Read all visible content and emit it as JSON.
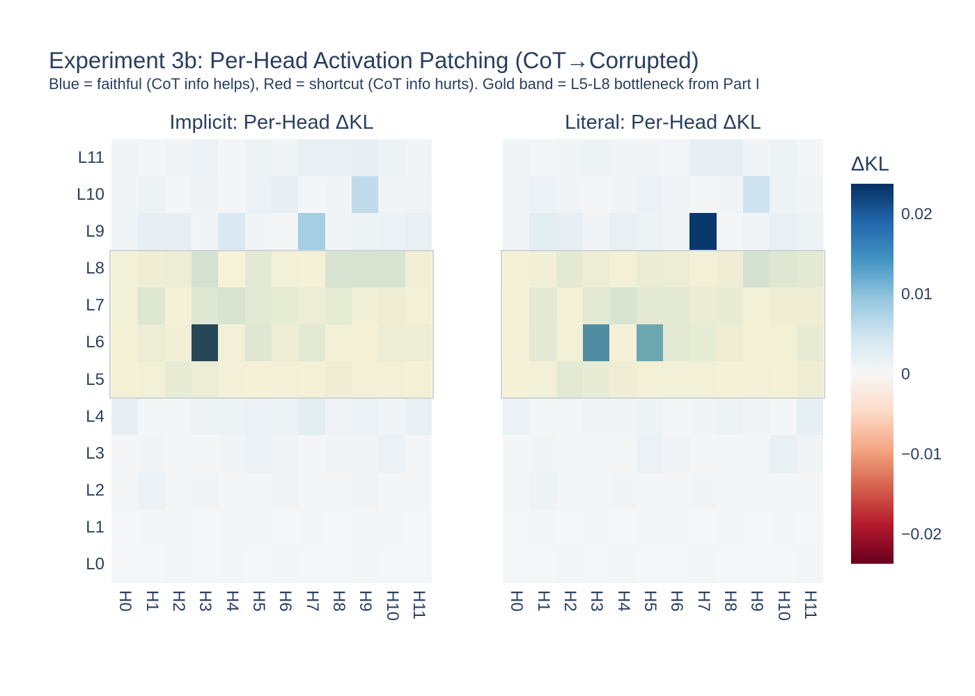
{
  "title": "Experiment 3b: Per-Head Activation Patching (CoT→Corrupted)",
  "subtitle": "Blue = faithful (CoT info helps), Red = shortcut (CoT info hurts). Gold band = L5-L8 bottleneck from Part I",
  "colors": {
    "background": "#ffffff",
    "text": "#2a3f5f",
    "near_zero_cell": "#f7f7f7",
    "gold_band_fill": "rgba(255,215,0,0.13)",
    "gold_band_border": "#ccd4dd",
    "colormap_stops": [
      "#67001f",
      "#b2182b",
      "#d6604d",
      "#f4a582",
      "#fddbc7",
      "#f7f7f7",
      "#d1e5f0",
      "#92c5de",
      "#4393c3",
      "#2166ac",
      "#053061"
    ]
  },
  "colorbar": {
    "title": "ΔKL",
    "zmin": -0.0237,
    "zmax": 0.0237,
    "ticks": [
      {
        "label": "0.02",
        "value": 0.02
      },
      {
        "label": "0.01",
        "value": 0.01
      },
      {
        "label": "0",
        "value": 0
      },
      {
        "label": "−0.01",
        "value": -0.01
      },
      {
        "label": "−0.02",
        "value": -0.02
      }
    ]
  },
  "chart_data": [
    {
      "type": "heatmap",
      "title": "Implicit: Per-Head ΔKL",
      "colorscale": "RdBu (blue = positive ΔKL, red = negative)",
      "x_labels": [
        "H0",
        "H1",
        "H2",
        "H3",
        "H4",
        "H5",
        "H6",
        "H7",
        "H8",
        "H9",
        "H10",
        "H11"
      ],
      "y_labels": [
        "L11",
        "L10",
        "L9",
        "L8",
        "L7",
        "L6",
        "L5",
        "L4",
        "L3",
        "L2",
        "L1",
        "L0"
      ],
      "highlight_band": {
        "label": "L5-L8 bottleneck from Part I",
        "row_top": "L8",
        "row_bottom": "L5"
      },
      "values": [
        [
          0.0008,
          0.0005,
          0.0008,
          0.0015,
          0.0005,
          0.0012,
          0.0008,
          0.0018,
          0.0018,
          0.002,
          0.0012,
          0.0008
        ],
        [
          0.0008,
          0.0012,
          0.0005,
          0.0012,
          0.0005,
          0.0015,
          0.002,
          0.0005,
          0.0008,
          0.006,
          0.0008,
          0.001
        ],
        [
          0.0008,
          0.002,
          0.002,
          0.0008,
          0.0035,
          0.0008,
          0.0005,
          0.008,
          0.0008,
          0.0012,
          0.0015,
          0.0018
        ],
        [
          0.0008,
          0.0012,
          0.0018,
          0.005,
          0.0003,
          0.003,
          0.0008,
          0.0005,
          0.0045,
          0.0045,
          0.0045,
          0.001
        ],
        [
          0.0008,
          0.004,
          0.0005,
          0.0035,
          0.0045,
          0.003,
          0.0025,
          0.0015,
          0.0025,
          0.001,
          0.0012,
          0.0008
        ],
        [
          0.0005,
          0.0018,
          0.001,
          0.0235,
          0.0008,
          0.0035,
          0.0012,
          0.003,
          0.0008,
          0.0005,
          0.0015,
          0.0015
        ],
        [
          0.0005,
          0.0008,
          0.0022,
          0.0015,
          0.0008,
          0.0005,
          0.0008,
          0.0005,
          0.0012,
          0.0008,
          0.0008,
          0.0005
        ],
        [
          0.002,
          0.0005,
          0.0005,
          0.0012,
          0.0012,
          0.0015,
          0.0012,
          0.0025,
          0.001,
          0.0015,
          0.0008,
          0.0018
        ],
        [
          0.0005,
          0.0008,
          0.0005,
          0.0005,
          0.0008,
          0.0015,
          0.0008,
          0.0005,
          0.0008,
          0.0008,
          0.0015,
          0.0005
        ],
        [
          0.0005,
          0.0015,
          0.0005,
          0.0008,
          0.0005,
          0.0005,
          0.0008,
          0.0005,
          0.0005,
          0.0008,
          0.0005,
          0.0005
        ],
        [
          0.0003,
          0.0005,
          0.0005,
          0.0003,
          0.0005,
          0.0005,
          0.0003,
          0.0005,
          0.0003,
          0.0005,
          0.0005,
          0.0003
        ],
        [
          0.0003,
          0.0003,
          0.0005,
          0.0003,
          0.0005,
          0.0003,
          0.0005,
          0.0003,
          0.0003,
          0.0005,
          0.0003,
          0.0003
        ]
      ]
    },
    {
      "type": "heatmap",
      "title": "Literal: Per-Head ΔKL",
      "colorscale": "RdBu (blue = positive ΔKL, red = negative)",
      "x_labels": [
        "H0",
        "H1",
        "H2",
        "H3",
        "H4",
        "H5",
        "H6",
        "H7",
        "H8",
        "H9",
        "H10",
        "H11"
      ],
      "y_labels": [
        "L11",
        "L10",
        "L9",
        "L8",
        "L7",
        "L6",
        "L5",
        "L4",
        "L3",
        "L2",
        "L1",
        "L0"
      ],
      "highlight_band": {
        "label": "L5-L8 bottleneck from Part I",
        "row_top": "L8",
        "row_bottom": "L5"
      },
      "values": [
        [
          0.0008,
          0.0005,
          0.0008,
          0.0012,
          0.0008,
          0.0008,
          0.0005,
          0.002,
          0.002,
          0.0008,
          0.0012,
          0.0005
        ],
        [
          0.0008,
          0.0015,
          0.0008,
          0.0005,
          0.0008,
          0.0015,
          0.0008,
          0.0005,
          0.0008,
          0.005,
          0.0012,
          0.0008
        ],
        [
          0.0008,
          0.0025,
          0.002,
          0.0008,
          0.0018,
          0.0012,
          0.0008,
          0.023,
          0.0005,
          0.0008,
          0.0018,
          0.0012
        ],
        [
          0.0005,
          0.001,
          0.003,
          0.0015,
          0.0008,
          0.002,
          0.0015,
          0.0008,
          0.0012,
          0.005,
          0.0035,
          0.0028
        ],
        [
          0.0008,
          0.003,
          0.0005,
          0.003,
          0.0045,
          0.003,
          0.003,
          0.002,
          0.0022,
          0.0008,
          0.0012,
          0.0012
        ],
        [
          0.0008,
          0.0028,
          0.0008,
          0.016,
          0.0005,
          0.013,
          0.0028,
          0.0025,
          0.0012,
          0.0008,
          0.0008,
          0.0022
        ],
        [
          0.0005,
          0.0008,
          0.003,
          0.0022,
          0.0012,
          0.0008,
          0.0008,
          0.0008,
          0.0005,
          0.0008,
          0.0005,
          0.0012
        ],
        [
          0.0015,
          0.0005,
          0.0005,
          0.0008,
          0.0008,
          0.0012,
          0.0005,
          0.0008,
          0.0012,
          0.0008,
          0.0005,
          0.0022
        ],
        [
          0.0005,
          0.0008,
          0.0005,
          0.0005,
          0.0005,
          0.0015,
          0.0008,
          0.0005,
          0.0005,
          0.0005,
          0.0018,
          0.0008
        ],
        [
          0.0005,
          0.0012,
          0.0005,
          0.0005,
          0.0008,
          0.0005,
          0.0005,
          0.0008,
          0.0005,
          0.0005,
          0.0005,
          0.0005
        ],
        [
          0.0003,
          0.0005,
          0.0003,
          0.0005,
          0.0003,
          0.0005,
          0.0005,
          0.0003,
          0.0005,
          0.0003,
          0.0005,
          0.0003
        ],
        [
          0.0003,
          0.0003,
          0.0005,
          0.0003,
          0.0005,
          0.0003,
          0.0003,
          0.0005,
          0.0003,
          0.0003,
          0.0003,
          0.0005
        ]
      ]
    }
  ]
}
